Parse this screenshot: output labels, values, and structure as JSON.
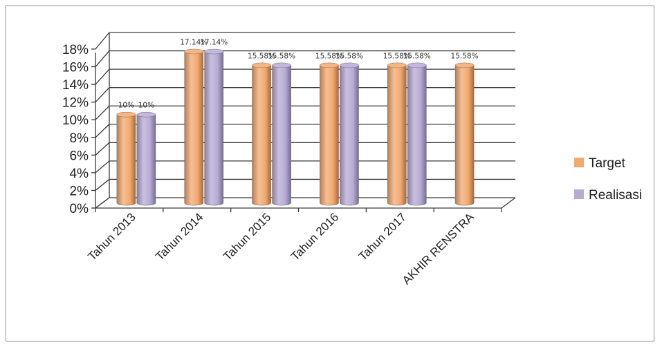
{
  "chart_data": {
    "type": "bar",
    "title": "",
    "xlabel": "",
    "ylabel": "",
    "ylim": [
      0,
      18
    ],
    "y_ticks": [
      "0%",
      "2%",
      "4%",
      "6%",
      "8%",
      "10%",
      "12%",
      "14%",
      "16%",
      "18%"
    ],
    "categories": [
      "Tahun 2013",
      "Tahun 2014",
      "Tahun 2015",
      "Tahun 2016",
      "Tahun 2017",
      "AKHIR RENSTRA"
    ],
    "series": [
      {
        "name": "Target",
        "color": "#f3a96f",
        "values": [
          10,
          17.14,
          15.58,
          15.58,
          15.58,
          15.58
        ],
        "labels": [
          "10%",
          "17.14%",
          "15.58%",
          "15.58%",
          "15.58%",
          "15.58%"
        ]
      },
      {
        "name": "Realisasi",
        "color": "#b7abd6",
        "values": [
          10,
          17.14,
          15.58,
          15.58,
          15.58,
          null
        ],
        "labels": [
          "10%",
          "17.14%",
          "15.58%",
          "15.58%",
          "15.58%",
          ""
        ]
      }
    ],
    "grid": true,
    "legend_position": "right",
    "style": "3d-cylinder"
  }
}
